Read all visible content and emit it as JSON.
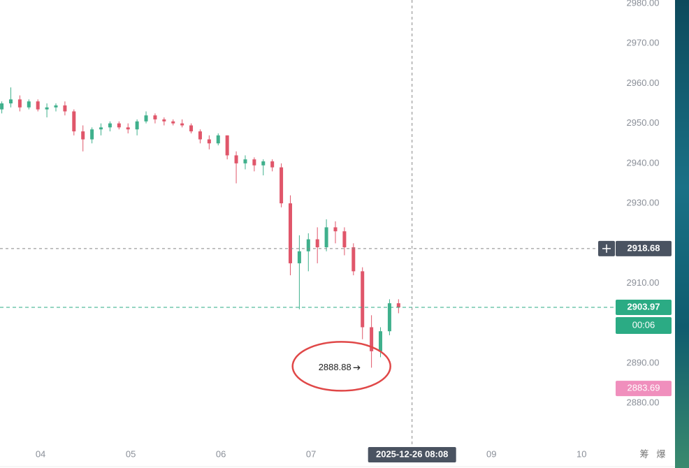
{
  "chart_data": {
    "type": "candlestick",
    "x": [
      3.57,
      3.67,
      3.77,
      3.87,
      3.97,
      4.07,
      4.17,
      4.27,
      4.37,
      4.47,
      4.57,
      4.67,
      4.77,
      4.87,
      4.97,
      5.07,
      5.17,
      5.27,
      5.37,
      5.47,
      5.57,
      5.67,
      5.77,
      5.87,
      5.97,
      6.07,
      6.17,
      6.27,
      6.37,
      6.47,
      6.57,
      6.67,
      6.77,
      6.87,
      6.97,
      7.07,
      7.17,
      7.27,
      7.37,
      7.47,
      7.57,
      7.67,
      7.77,
      7.87,
      7.97
    ],
    "open": [
      2953.5,
      2955,
      2956,
      2954,
      2955.5,
      2953.5,
      2954,
      2954.5,
      2953,
      2948,
      2946,
      2948.5,
      2949,
      2950,
      2949,
      2948.5,
      2950.5,
      2952,
      2951,
      2950.5,
      2950,
      2949.5,
      2948,
      2946,
      2945,
      2947,
      2942,
      2940,
      2941,
      2939.5,
      2940.5,
      2939,
      2930,
      2915,
      2918,
      2921,
      2919,
      2924,
      2923,
      2919,
      2913,
      2899,
      2893,
      2898,
      2905
    ],
    "high": [
      2955.5,
      2959,
      2957,
      2956,
      2956,
      2955,
      2955,
      2955.5,
      2953.5,
      2949.5,
      2949,
      2950,
      2950.5,
      2950.5,
      2950,
      2951,
      2953,
      2952.5,
      2951.5,
      2951,
      2951,
      2950,
      2948.5,
      2947,
      2947.5,
      2947,
      2943,
      2942,
      2941.5,
      2941,
      2941,
      2940,
      2932,
      2922,
      2922.5,
      2924,
      2926,
      2925.5,
      2924,
      2920,
      2914,
      2902,
      2899,
      2906,
      2906
    ],
    "low": [
      2952.5,
      2954,
      2953,
      2953.5,
      2953,
      2951.5,
      2953,
      2952,
      2947,
      2943,
      2945,
      2947,
      2948,
      2948.5,
      2947.5,
      2947,
      2950,
      2950,
      2949.5,
      2949.5,
      2949,
      2947.5,
      2945,
      2943.5,
      2944.5,
      2941,
      2935,
      2938.5,
      2938,
      2937,
      2938,
      2929,
      2912,
      2903.5,
      2913,
      2915,
      2918,
      2920,
      2917,
      2912,
      2896,
      2888.88,
      2891.5,
      2897,
      2902.5
    ],
    "close": [
      2955,
      2956,
      2954,
      2955.5,
      2953.5,
      2954,
      2954.5,
      2953,
      2948,
      2946,
      2948.5,
      2949,
      2950,
      2949,
      2948.5,
      2950.5,
      2952,
      2951,
      2950.5,
      2950,
      2949.5,
      2948,
      2946,
      2945,
      2947,
      2942,
      2940,
      2941,
      2939.5,
      2940.5,
      2939,
      2930,
      2915,
      2918,
      2921,
      2919,
      2924,
      2923,
      2919,
      2913,
      2899,
      2893,
      2898,
      2905,
      2903.97
    ],
    "up_color": "#3fb08c",
    "down_color": "#e0566a",
    "xlim": [
      3.55,
      10.37
    ],
    "xticks": [
      {
        "value": 4,
        "label": "04"
      },
      {
        "value": 5,
        "label": "05"
      },
      {
        "value": 6,
        "label": "06"
      },
      {
        "value": 7,
        "label": "07"
      },
      {
        "value": 9,
        "label": "09"
      },
      {
        "value": 10,
        "label": "10"
      }
    ],
    "ylim": [
      2869.9,
      2980.87
    ],
    "yticks": [
      {
        "value": 2880,
        "label": "2880.00"
      },
      {
        "value": 2890,
        "label": "2890.00"
      },
      {
        "value": 2910,
        "label": "2910.00"
      },
      {
        "value": 2930,
        "label": "2930.00"
      },
      {
        "value": 2940,
        "label": "2940.00"
      },
      {
        "value": 2950,
        "label": "2950.00"
      },
      {
        "value": 2960,
        "label": "2960.00"
      },
      {
        "value": 2970,
        "label": "2970.00"
      },
      {
        "value": 2980,
        "label": "2980.00"
      }
    ],
    "last_price": {
      "value": 2903.97,
      "color": "#2bab84",
      "countdown": "00:06"
    },
    "crosshair": {
      "x": 8.12,
      "y": 2918.68,
      "x_label": "2025-12-26 08:08"
    },
    "low_marker": {
      "x": 7.57,
      "value": 2888.88
    },
    "alert_price": {
      "value": 2883.69,
      "color": "#f08fbd"
    },
    "toolbar_labels": [
      "筹",
      "爆"
    ]
  }
}
